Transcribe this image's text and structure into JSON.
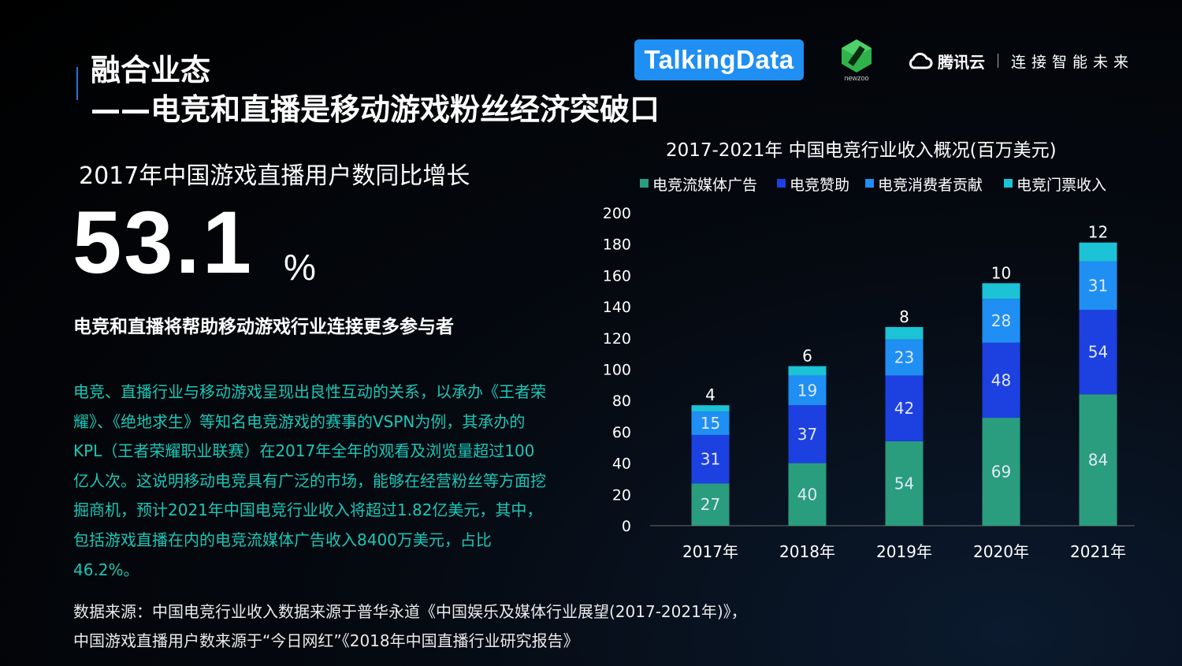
{
  "header": {
    "title_line1": "融合业态",
    "title_line2": "——电竞和直播是移动游戏粉丝经济突破口"
  },
  "logos": {
    "talkingdata": "TalkingData",
    "newzoo": "newzoo",
    "tencent_cloud_name": "腾讯云",
    "tencent_cloud_slogan": "连接智能未来"
  },
  "stat": {
    "label": "2017年中国游戏直播用户数同比增长",
    "value": "53.1",
    "unit": "%"
  },
  "subhead": "电竞和直播将帮助移动游戏行业连接更多参与者",
  "body": "电竞、直播行业与移动游戏呈现出良性互动的关系，以承办《王者荣耀》、《绝地求生》等知名电竞游戏的赛事的VSPN为例，其承办的KPL（王者荣耀职业联赛）在2017年全年的观看及浏览量超过100亿人次。这说明移动电竞具有广泛的市场，能够在经营粉丝等方面挖掘商机，预计2021年中国电竞行业收入将超过1.82亿美元，其中，包括游戏直播在内的电竞流媒体广告收入8400万美元，占比46.2%。",
  "source": {
    "line1": "数据来源：中国电竞行业收入数据来源于普华永道《中国娱乐及媒体行业展望(2017-2021年)》，",
    "line2": "中国游戏直播用户数来源于“今日网红”《2018年中国直播行业研究报告》"
  },
  "chart_data": {
    "type": "bar",
    "stacked": true,
    "title": "2017-2021年  中国电竞行业收入概况(百万美元)",
    "categories": [
      "2017年",
      "2018年",
      "2019年",
      "2020年",
      "2021年"
    ],
    "series": [
      {
        "name": "电竞流媒体广告",
        "color": "#2a9d7f",
        "values": [
          27,
          40,
          54,
          69,
          84
        ]
      },
      {
        "name": "电竞赞助",
        "color": "#1d40e0",
        "values": [
          31,
          37,
          42,
          48,
          54
        ]
      },
      {
        "name": "电竞消费者贡献",
        "color": "#1f8ff3",
        "values": [
          15,
          19,
          23,
          28,
          31
        ]
      },
      {
        "name": "电竞门票收入",
        "color": "#1cc2d6",
        "values": [
          4,
          6,
          8,
          10,
          12
        ]
      }
    ],
    "ylim": [
      0,
      200
    ],
    "yticks": [
      "0",
      "20",
      "40",
      "60",
      "80",
      "100",
      "120",
      "140",
      "160",
      "180",
      "200"
    ],
    "legend_position": "top",
    "grid": false
  }
}
